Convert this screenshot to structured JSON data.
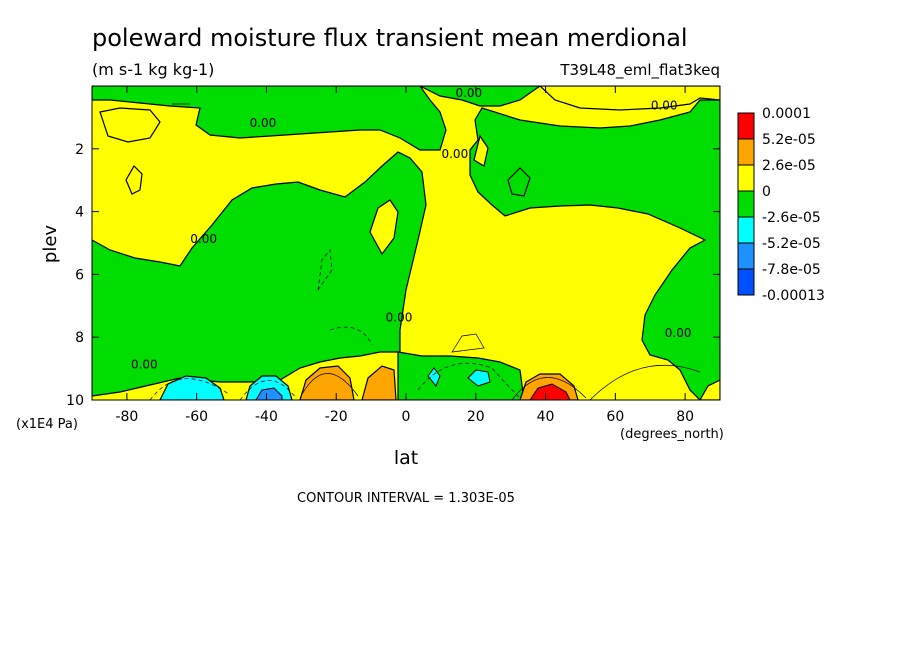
{
  "chart_data": {
    "type": "heatmap",
    "title": "poleward moisture flux transient mean merdional",
    "subtitle": "(m s-1 kg kg-1)",
    "dataset_label": "T39L48_eml_flat3keq",
    "xlabel": "lat",
    "x_unit_label": "(degrees_north)",
    "ylabel": "plev",
    "y_unit_label": "(x1E4 Pa)",
    "xlim": [
      -90,
      90
    ],
    "ylim": [
      10,
      0
    ],
    "x_ticks": [
      -80,
      -60,
      -40,
      -20,
      0,
      20,
      40,
      60,
      80
    ],
    "x_tick_labels": [
      "-80",
      "-60",
      "-40",
      "-20",
      "0",
      "20",
      "40",
      "60",
      "80"
    ],
    "y_ticks": [
      2,
      4,
      6,
      8,
      10
    ],
    "y_tick_labels": [
      "2",
      "4",
      "6",
      "8",
      "10"
    ],
    "contour_interval_text": "CONTOUR INTERVAL = 1.303E-05",
    "contour_line_label": "0.00",
    "colorbar": {
      "levels": [
        "0.0001",
        "5.2e-05",
        "2.6e-05",
        "0",
        "-2.6e-05",
        "-5.2e-05",
        "-7.8e-05",
        "-0.00013"
      ],
      "colors": [
        "#ff0000",
        "#ffa500",
        "#ffff00",
        "#00dd00",
        "#00ffff",
        "#1e90ff",
        "#0050ff"
      ]
    },
    "field_colors": {
      "positive_1": "#ffff00",
      "positive_2": "#ffa500",
      "positive_3": "#ff0000",
      "negative_1": "#00dd00",
      "negative_2": "#00ffff",
      "negative_3": "#1e90ff"
    },
    "zero_contour_label_positions": [
      {
        "lat": -75,
        "plev": 9.0
      },
      {
        "lat": -58,
        "plev": 5.0
      },
      {
        "lat": -41,
        "plev": 1.3
      },
      {
        "lat": -2,
        "plev": 7.5
      },
      {
        "lat": 14,
        "plev": 2.3
      },
      {
        "lat": 18,
        "plev": 0.35
      },
      {
        "lat": 74,
        "plev": 0.75
      },
      {
        "lat": 78,
        "plev": 8.0
      }
    ],
    "extrema": [
      {
        "sign": "negative",
        "lat": -63,
        "plev": 9.6,
        "level": "negative_2"
      },
      {
        "sign": "negative",
        "lat": -39,
        "plev": 9.6,
        "level": "negative_3"
      },
      {
        "sign": "positive",
        "lat": -20,
        "plev": 9.4,
        "level": "positive_2"
      },
      {
        "sign": "positive",
        "lat": 39,
        "plev": 9.7,
        "level": "positive_3"
      }
    ]
  }
}
